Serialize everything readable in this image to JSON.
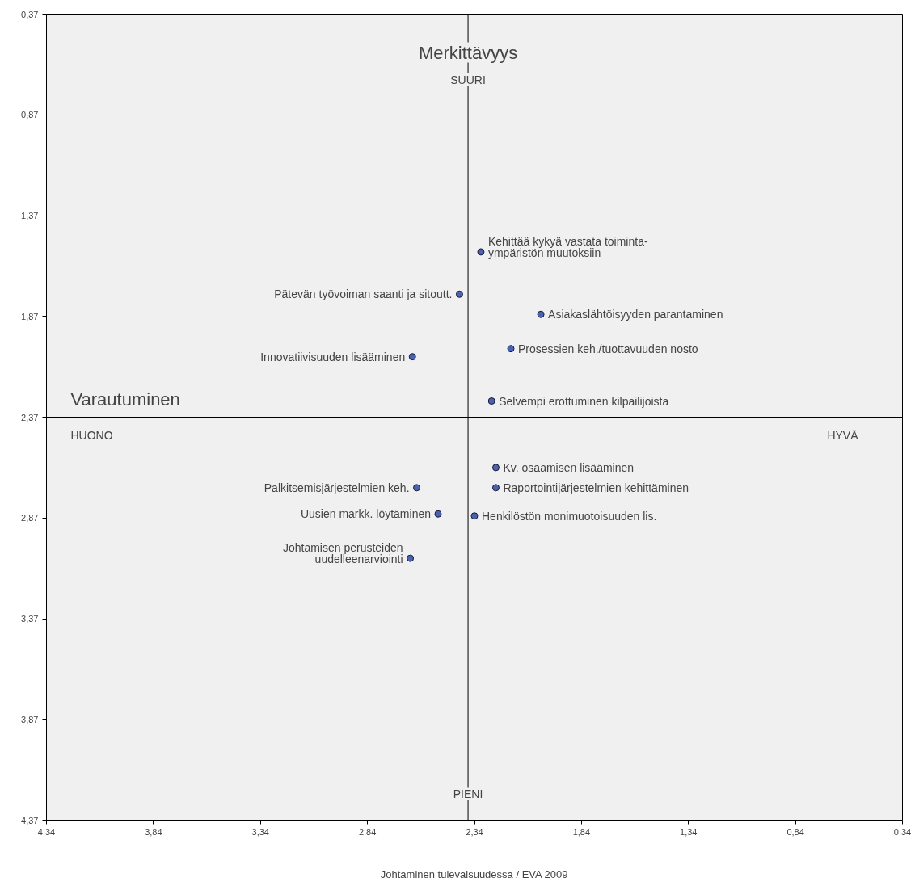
{
  "chart_data": {
    "type": "scatter",
    "xlabel": "Johtaminen tulevaisuudessa / EVA 2009",
    "x": [
      2.31,
      2.41,
      2.03,
      2.17,
      2.63,
      2.26,
      2.24,
      2.61,
      2.24,
      2.51,
      2.34,
      2.64
    ],
    "series": [
      {
        "color": "#4a63b0",
        "values": [
          1.55,
          1.76,
          1.86,
          2.03,
          2.07,
          2.29,
          2.62,
          2.72,
          2.72,
          2.85,
          2.86,
          3.07
        ]
      }
    ],
    "xlim": [
      4.34,
      0.34
    ],
    "ylim": [
      4.37,
      0.37
    ],
    "xticks": [
      {
        "value": 4.34,
        "label": "4,34"
      },
      {
        "value": 3.84,
        "label": "3,84"
      },
      {
        "value": 3.34,
        "label": "3,34"
      },
      {
        "value": 2.84,
        "label": "2,84"
      },
      {
        "value": 2.34,
        "label": "2,34"
      },
      {
        "value": 1.84,
        "label": "1,84"
      },
      {
        "value": 1.34,
        "label": "1,34"
      },
      {
        "value": 0.84,
        "label": "0,84"
      },
      {
        "value": 0.34,
        "label": "0,34"
      }
    ],
    "yticks": [
      {
        "value": 0.37,
        "label": "0,37"
      },
      {
        "value": 0.87,
        "label": "0,87"
      },
      {
        "value": 1.37,
        "label": "1,37"
      },
      {
        "value": 1.87,
        "label": "1,87"
      },
      {
        "value": 2.37,
        "label": "2,37"
      },
      {
        "value": 2.87,
        "label": "2,87"
      },
      {
        "value": 3.37,
        "label": "3,37"
      },
      {
        "value": 3.87,
        "label": "3,87"
      },
      {
        "value": 4.37,
        "label": "4,37"
      }
    ],
    "ref_lines": [
      {
        "axis": "x",
        "value": 2.37,
        "label": "Merkittävyys"
      },
      {
        "axis": "y",
        "value": 2.37,
        "label": "Varautuminen"
      }
    ],
    "annotations": [
      "SUURI",
      "PIENI",
      "HUONO",
      "HYVÄ",
      {
        "text": "Kehittää kykyä vastata toiminta-\nympäristön muutoksiin",
        "x": 2.31,
        "y": 1.55
      },
      {
        "text": "Pätevän työvoiman saanti ja sitoutt.",
        "x": 2.41,
        "y": 1.76
      },
      {
        "text": "Asiakaslähtöisyyden parantaminen",
        "x": 2.03,
        "y": 1.86
      },
      {
        "text": "Prosessien keh./tuottavuuden nosto",
        "x": 2.17,
        "y": 2.03
      },
      {
        "text": "Innovatiivisuuden lisääminen",
        "x": 2.63,
        "y": 2.07
      },
      {
        "text": "Selvempi erottuminen kilpailijoista",
        "x": 2.26,
        "y": 2.29
      },
      {
        "text": "Kv. osaamisen lisääminen",
        "x": 2.24,
        "y": 2.62
      },
      {
        "text": "Palkitsemisjärjestelmien keh.",
        "x": 2.61,
        "y": 2.72
      },
      {
        "text": "Raportointijärjestelmien kehittäminen",
        "x": 2.24,
        "y": 2.72
      },
      {
        "text": "Uusien markk. löytäminen",
        "x": 2.51,
        "y": 2.85
      },
      {
        "text": "Henkilöstön monimuotoisuuden lis.",
        "x": 2.34,
        "y": 2.86
      },
      {
        "text": "Johtamisen perusteiden\nuudelleenarviointi",
        "x": 2.64,
        "y": 3.07
      }
    ],
    "grid": false,
    "marker": "circle"
  }
}
